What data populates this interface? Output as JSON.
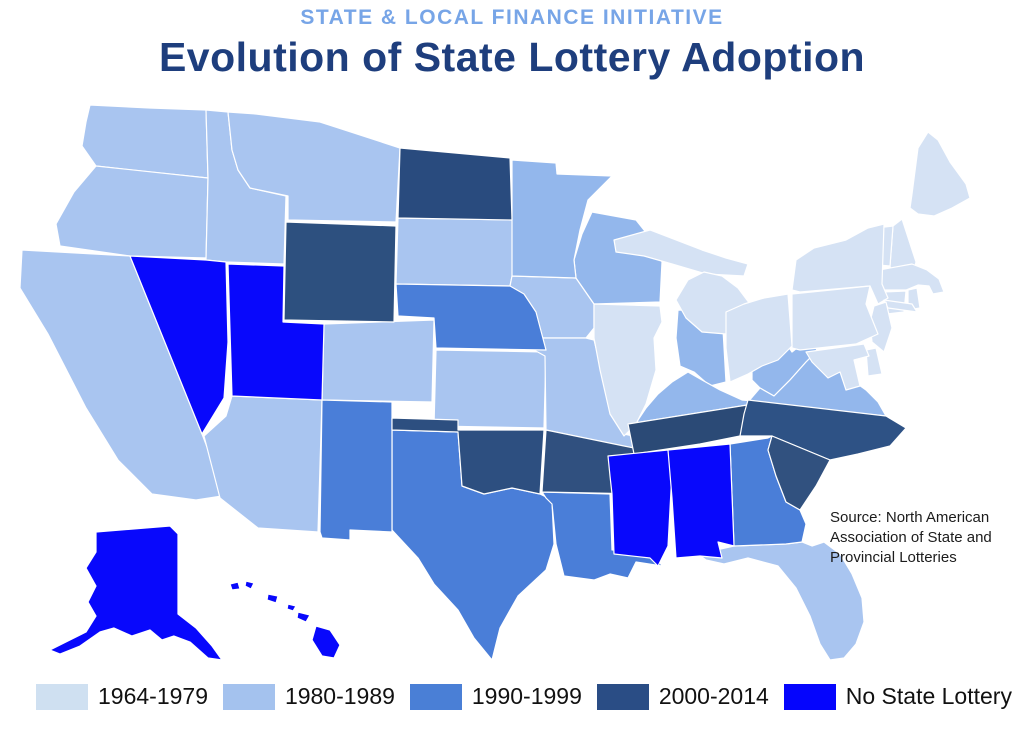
{
  "header": {
    "kicker": "STATE & LOCAL FINANCE INITIATIVE",
    "kicker_color": "#77a5e7",
    "title": "Evolution of State Lottery Adoption",
    "title_color": "#1e3e7d"
  },
  "source_note": "Source: North American Association of State and Provincial Lotteries",
  "legend": {
    "items": [
      {
        "label": "1964-1979",
        "color": "#cfe0f1"
      },
      {
        "label": "1980-1989",
        "color": "#a4c2ee"
      },
      {
        "label": "1990-1999",
        "color": "#4a7fd6"
      },
      {
        "label": "2000-2014",
        "color": "#2a4d85"
      },
      {
        "label": "No State Lottery",
        "color": "#0505fd"
      }
    ]
  },
  "map": {
    "border_color": "#ffffff"
  },
  "chart_data": {
    "type": "choropleth",
    "region": "United States",
    "title": "Evolution of State Lottery Adoption",
    "categories": [
      "1964-1979",
      "1980-1989",
      "1990-1999",
      "2000-2014",
      "No State Lottery"
    ],
    "category_colors": {
      "1964-1979": "#d5e2f4",
      "1980-1989": "#a9c5f0",
      "1990-1999": "#4a7ed8",
      "2000-2014": "#294b7e",
      "No State Lottery": "#0808fc"
    },
    "states": [
      {
        "abbr": "WA",
        "name": "Washington",
        "category": "1980-1989",
        "fill": "#a9c5f0"
      },
      {
        "abbr": "OR",
        "name": "Oregon",
        "category": "1980-1989",
        "fill": "#a9c5f0"
      },
      {
        "abbr": "CA",
        "name": "California",
        "category": "1980-1989",
        "fill": "#a9c5f0"
      },
      {
        "abbr": "ID",
        "name": "Idaho",
        "category": "1980-1989",
        "fill": "#a9c5f0"
      },
      {
        "abbr": "MT",
        "name": "Montana",
        "category": "1980-1989",
        "fill": "#a9c5f0"
      },
      {
        "abbr": "SD",
        "name": "South Dakota",
        "category": "1980-1989",
        "fill": "#a9c5f0"
      },
      {
        "abbr": "IA",
        "name": "Iowa",
        "category": "1980-1989",
        "fill": "#a9c5f0"
      },
      {
        "abbr": "KS",
        "name": "Kansas",
        "category": "1980-1989",
        "fill": "#a9c5f0"
      },
      {
        "abbr": "MO",
        "name": "Missouri",
        "category": "1980-1989",
        "fill": "#a9c5f0"
      },
      {
        "abbr": "CO",
        "name": "Colorado",
        "category": "1980-1989",
        "fill": "#a9c5f0"
      },
      {
        "abbr": "AZ",
        "name": "Arizona",
        "category": "1980-1989",
        "fill": "#a9c5f0"
      },
      {
        "abbr": "FL",
        "name": "Florida",
        "category": "1980-1989",
        "fill": "#a9c5f0"
      },
      {
        "abbr": "WI",
        "name": "Wisconsin",
        "category": "1980-1989",
        "fill": "#93b7ec"
      },
      {
        "abbr": "MN",
        "name": "Minnesota",
        "category": "1980-1989",
        "fill": "#93b7ec"
      },
      {
        "abbr": "IN",
        "name": "Indiana",
        "category": "1980-1989",
        "fill": "#93b7ec"
      },
      {
        "abbr": "KY",
        "name": "Kentucky",
        "category": "1980-1989",
        "fill": "#93b7ec"
      },
      {
        "abbr": "WV",
        "name": "West Virginia",
        "category": "1980-1989",
        "fill": "#93b7ec"
      },
      {
        "abbr": "VA",
        "name": "Virginia",
        "category": "1980-1989",
        "fill": "#93b7ec"
      },
      {
        "abbr": "ME",
        "name": "Maine",
        "category": "1964-1979",
        "fill": "#d5e2f4"
      },
      {
        "abbr": "NH",
        "name": "New Hampshire",
        "category": "1964-1979",
        "fill": "#d5e2f4"
      },
      {
        "abbr": "VT",
        "name": "Vermont",
        "category": "1964-1979",
        "fill": "#d5e2f4"
      },
      {
        "abbr": "MA",
        "name": "Massachusetts",
        "category": "1964-1979",
        "fill": "#d5e2f4"
      },
      {
        "abbr": "RI",
        "name": "Rhode Island",
        "category": "1964-1979",
        "fill": "#d5e2f4"
      },
      {
        "abbr": "CT",
        "name": "Connecticut",
        "category": "1964-1979",
        "fill": "#d5e2f4"
      },
      {
        "abbr": "NY",
        "name": "New York",
        "category": "1964-1979",
        "fill": "#d5e2f4"
      },
      {
        "abbr": "NJ",
        "name": "New Jersey",
        "category": "1964-1979",
        "fill": "#d5e2f4"
      },
      {
        "abbr": "PA",
        "name": "Pennsylvania",
        "category": "1964-1979",
        "fill": "#d5e2f4"
      },
      {
        "abbr": "DE",
        "name": "Delaware",
        "category": "1964-1979",
        "fill": "#d5e2f4"
      },
      {
        "abbr": "MD",
        "name": "Maryland",
        "category": "1964-1979",
        "fill": "#d5e2f4"
      },
      {
        "abbr": "MI",
        "name": "Michigan",
        "category": "1964-1979",
        "fill": "#d5e2f4"
      },
      {
        "abbr": "OH",
        "name": "Ohio",
        "category": "1964-1979",
        "fill": "#d5e2f4"
      },
      {
        "abbr": "IL",
        "name": "Illinois",
        "category": "1964-1979",
        "fill": "#d5e2f4"
      },
      {
        "abbr": "NE",
        "name": "Nebraska",
        "category": "1990-1999",
        "fill": "#4a7ed8"
      },
      {
        "abbr": "TX",
        "name": "Texas",
        "category": "1990-1999",
        "fill": "#4a7ed8"
      },
      {
        "abbr": "NM",
        "name": "New Mexico",
        "category": "1990-1999",
        "fill": "#4a7ed8"
      },
      {
        "abbr": "LA",
        "name": "Louisiana",
        "category": "1990-1999",
        "fill": "#4a7ed8"
      },
      {
        "abbr": "GA",
        "name": "Georgia",
        "category": "1990-1999",
        "fill": "#4a7ed8"
      },
      {
        "abbr": "ND",
        "name": "North Dakota",
        "category": "2000-2014",
        "fill": "#294b7e"
      },
      {
        "abbr": "WY",
        "name": "Wyoming",
        "category": "2000-2014",
        "fill": "#2d507f"
      },
      {
        "abbr": "OK",
        "name": "Oklahoma",
        "category": "2000-2014",
        "fill": "#2d4f80"
      },
      {
        "abbr": "AR",
        "name": "Arkansas",
        "category": "2000-2014",
        "fill": "#30507f"
      },
      {
        "abbr": "TN",
        "name": "Tennessee",
        "category": "2000-2014",
        "fill": "#2b4a76"
      },
      {
        "abbr": "NC",
        "name": "North Carolina",
        "category": "2000-2014",
        "fill": "#2e5285"
      },
      {
        "abbr": "SC",
        "name": "South Carolina",
        "category": "2000-2014",
        "fill": "#31517f"
      },
      {
        "abbr": "NV",
        "name": "Nevada",
        "category": "No State Lottery",
        "fill": "#0808fc"
      },
      {
        "abbr": "UT",
        "name": "Utah",
        "category": "No State Lottery",
        "fill": "#0808fc"
      },
      {
        "abbr": "AK",
        "name": "Alaska",
        "category": "No State Lottery",
        "fill": "#0808fc"
      },
      {
        "abbr": "HI",
        "name": "Hawaii",
        "category": "No State Lottery",
        "fill": "#0808fc"
      },
      {
        "abbr": "MS",
        "name": "Mississippi",
        "category": "No State Lottery",
        "fill": "#0808fc"
      },
      {
        "abbr": "AL",
        "name": "Alabama",
        "category": "No State Lottery",
        "fill": "#0808fc"
      }
    ]
  }
}
